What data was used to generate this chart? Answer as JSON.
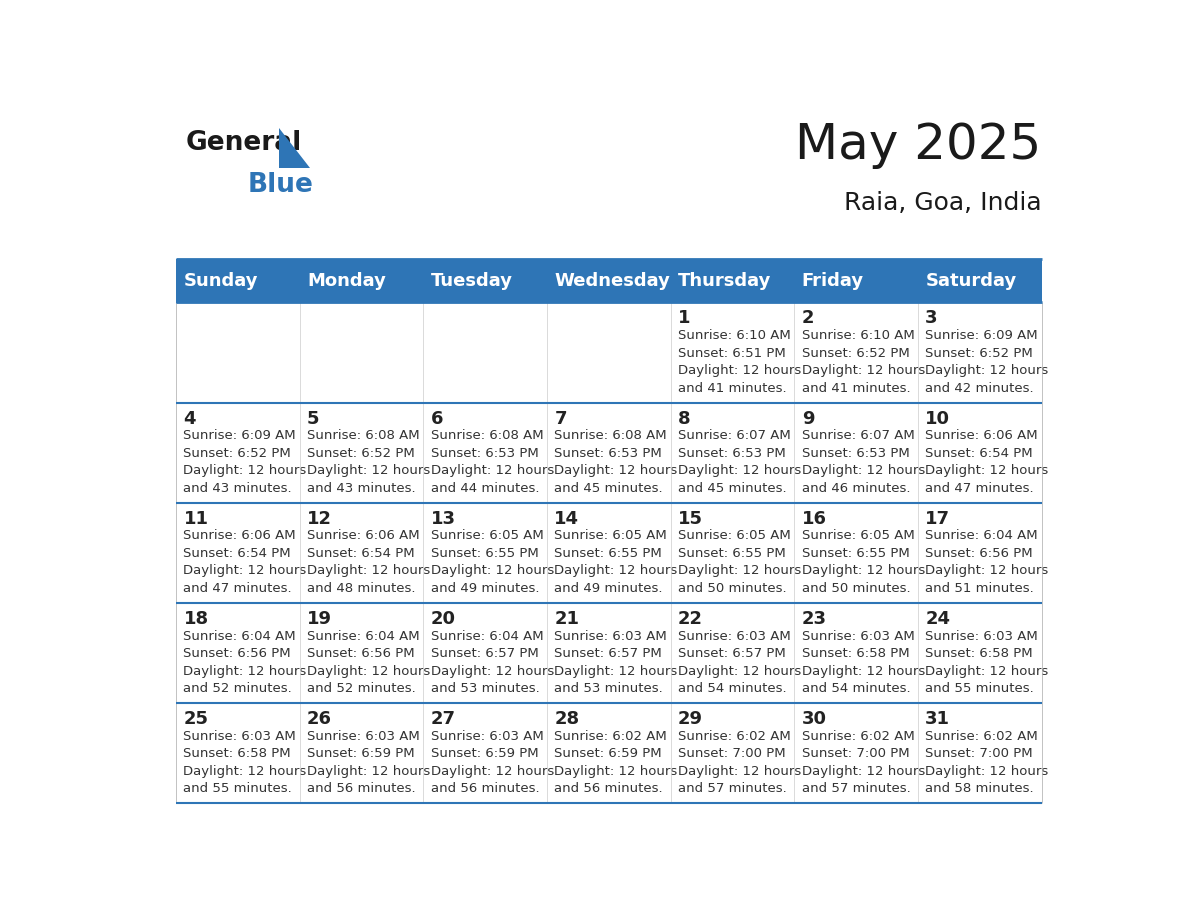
{
  "title": "May 2025",
  "subtitle": "Raia, Goa, India",
  "header_color": "#2E75B6",
  "header_text_color": "#FFFFFF",
  "day_names": [
    "Sunday",
    "Monday",
    "Tuesday",
    "Wednesday",
    "Thursday",
    "Friday",
    "Saturday"
  ],
  "title_fontsize": 36,
  "subtitle_fontsize": 18,
  "header_fontsize": 13,
  "day_num_fontsize": 13,
  "info_fontsize": 9.5,
  "weeks": [
    [
      {
        "day": 0,
        "info": ""
      },
      {
        "day": 0,
        "info": ""
      },
      {
        "day": 0,
        "info": ""
      },
      {
        "day": 0,
        "info": ""
      },
      {
        "day": 1,
        "info": "Sunrise: 6:10 AM\nSunset: 6:51 PM\nDaylight: 12 hours\nand 41 minutes."
      },
      {
        "day": 2,
        "info": "Sunrise: 6:10 AM\nSunset: 6:52 PM\nDaylight: 12 hours\nand 41 minutes."
      },
      {
        "day": 3,
        "info": "Sunrise: 6:09 AM\nSunset: 6:52 PM\nDaylight: 12 hours\nand 42 minutes."
      }
    ],
    [
      {
        "day": 4,
        "info": "Sunrise: 6:09 AM\nSunset: 6:52 PM\nDaylight: 12 hours\nand 43 minutes."
      },
      {
        "day": 5,
        "info": "Sunrise: 6:08 AM\nSunset: 6:52 PM\nDaylight: 12 hours\nand 43 minutes."
      },
      {
        "day": 6,
        "info": "Sunrise: 6:08 AM\nSunset: 6:53 PM\nDaylight: 12 hours\nand 44 minutes."
      },
      {
        "day": 7,
        "info": "Sunrise: 6:08 AM\nSunset: 6:53 PM\nDaylight: 12 hours\nand 45 minutes."
      },
      {
        "day": 8,
        "info": "Sunrise: 6:07 AM\nSunset: 6:53 PM\nDaylight: 12 hours\nand 45 minutes."
      },
      {
        "day": 9,
        "info": "Sunrise: 6:07 AM\nSunset: 6:53 PM\nDaylight: 12 hours\nand 46 minutes."
      },
      {
        "day": 10,
        "info": "Sunrise: 6:06 AM\nSunset: 6:54 PM\nDaylight: 12 hours\nand 47 minutes."
      }
    ],
    [
      {
        "day": 11,
        "info": "Sunrise: 6:06 AM\nSunset: 6:54 PM\nDaylight: 12 hours\nand 47 minutes."
      },
      {
        "day": 12,
        "info": "Sunrise: 6:06 AM\nSunset: 6:54 PM\nDaylight: 12 hours\nand 48 minutes."
      },
      {
        "day": 13,
        "info": "Sunrise: 6:05 AM\nSunset: 6:55 PM\nDaylight: 12 hours\nand 49 minutes."
      },
      {
        "day": 14,
        "info": "Sunrise: 6:05 AM\nSunset: 6:55 PM\nDaylight: 12 hours\nand 49 minutes."
      },
      {
        "day": 15,
        "info": "Sunrise: 6:05 AM\nSunset: 6:55 PM\nDaylight: 12 hours\nand 50 minutes."
      },
      {
        "day": 16,
        "info": "Sunrise: 6:05 AM\nSunset: 6:55 PM\nDaylight: 12 hours\nand 50 minutes."
      },
      {
        "day": 17,
        "info": "Sunrise: 6:04 AM\nSunset: 6:56 PM\nDaylight: 12 hours\nand 51 minutes."
      }
    ],
    [
      {
        "day": 18,
        "info": "Sunrise: 6:04 AM\nSunset: 6:56 PM\nDaylight: 12 hours\nand 52 minutes."
      },
      {
        "day": 19,
        "info": "Sunrise: 6:04 AM\nSunset: 6:56 PM\nDaylight: 12 hours\nand 52 minutes."
      },
      {
        "day": 20,
        "info": "Sunrise: 6:04 AM\nSunset: 6:57 PM\nDaylight: 12 hours\nand 53 minutes."
      },
      {
        "day": 21,
        "info": "Sunrise: 6:03 AM\nSunset: 6:57 PM\nDaylight: 12 hours\nand 53 minutes."
      },
      {
        "day": 22,
        "info": "Sunrise: 6:03 AM\nSunset: 6:57 PM\nDaylight: 12 hours\nand 54 minutes."
      },
      {
        "day": 23,
        "info": "Sunrise: 6:03 AM\nSunset: 6:58 PM\nDaylight: 12 hours\nand 54 minutes."
      },
      {
        "day": 24,
        "info": "Sunrise: 6:03 AM\nSunset: 6:58 PM\nDaylight: 12 hours\nand 55 minutes."
      }
    ],
    [
      {
        "day": 25,
        "info": "Sunrise: 6:03 AM\nSunset: 6:58 PM\nDaylight: 12 hours\nand 55 minutes."
      },
      {
        "day": 26,
        "info": "Sunrise: 6:03 AM\nSunset: 6:59 PM\nDaylight: 12 hours\nand 56 minutes."
      },
      {
        "day": 27,
        "info": "Sunrise: 6:03 AM\nSunset: 6:59 PM\nDaylight: 12 hours\nand 56 minutes."
      },
      {
        "day": 28,
        "info": "Sunrise: 6:02 AM\nSunset: 6:59 PM\nDaylight: 12 hours\nand 56 minutes."
      },
      {
        "day": 29,
        "info": "Sunrise: 6:02 AM\nSunset: 7:00 PM\nDaylight: 12 hours\nand 57 minutes."
      },
      {
        "day": 30,
        "info": "Sunrise: 6:02 AM\nSunset: 7:00 PM\nDaylight: 12 hours\nand 57 minutes."
      },
      {
        "day": 31,
        "info": "Sunrise: 6:02 AM\nSunset: 7:00 PM\nDaylight: 12 hours\nand 58 minutes."
      }
    ]
  ]
}
